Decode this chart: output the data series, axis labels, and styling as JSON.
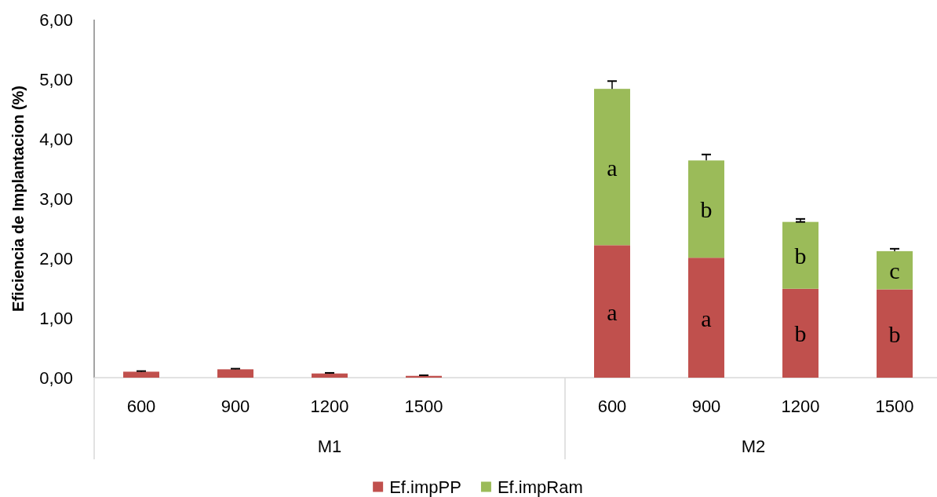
{
  "chart_data": {
    "type": "bar",
    "stacked": true,
    "ylabel": "Eficiencia de Implantacion (%)",
    "categories": [
      "600",
      "900",
      "1200",
      "1500",
      null,
      "600",
      "900",
      "1200",
      "1500"
    ],
    "series": [
      {
        "name": "Ef.impPP",
        "color": "#c0504d",
        "values": [
          0.1,
          0.14,
          0.07,
          0.03,
          null,
          2.22,
          2.01,
          1.49,
          1.48
        ],
        "errors": [
          [
            0.1,
            0.11
          ],
          [
            0.14,
            0.15
          ],
          [
            0.07,
            0.08
          ],
          [
            0.03,
            0.04
          ],
          null,
          null,
          null,
          null,
          null
        ],
        "value_labels": [
          null,
          null,
          null,
          null,
          null,
          "a",
          "a",
          "b",
          "b"
        ]
      },
      {
        "name": "Ef.impRam",
        "color": "#9bbb59",
        "values": [
          null,
          null,
          null,
          null,
          null,
          2.62,
          1.63,
          1.12,
          0.64
        ],
        "errors": [
          null,
          null,
          null,
          null,
          null,
          [
            4.84,
            4.97
          ],
          [
            3.64,
            3.74
          ],
          [
            2.61,
            2.66
          ],
          [
            2.12,
            2.16
          ]
        ],
        "value_labels": [
          null,
          null,
          null,
          null,
          null,
          "a",
          "b",
          "b",
          "c"
        ]
      }
    ],
    "ylim": [
      0,
      6
    ],
    "yticks": [
      {
        "value": 0,
        "label": "0,00"
      },
      {
        "value": 1,
        "label": "1,00"
      },
      {
        "value": 2,
        "label": "2,00"
      },
      {
        "value": 3,
        "label": "3,00"
      },
      {
        "value": 4,
        "label": "4,00"
      },
      {
        "value": 5,
        "label": "5,00"
      },
      {
        "value": 6,
        "label": "6,00"
      }
    ],
    "legend": "bottom",
    "annotations": [
      "M1",
      "M2"
    ]
  }
}
